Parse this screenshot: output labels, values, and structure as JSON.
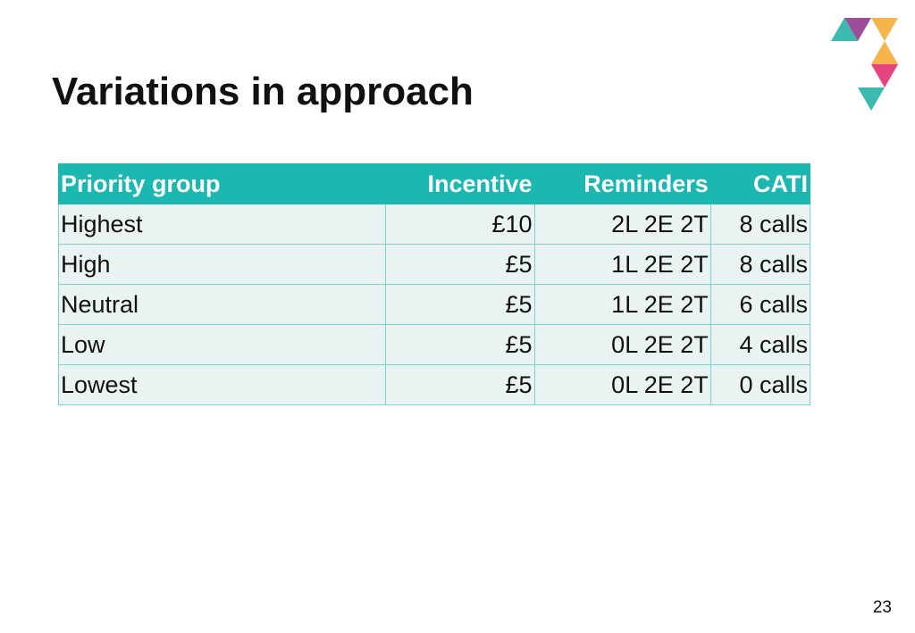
{
  "title": "Variations in approach",
  "table": {
    "header": [
      "Priority group",
      "Incentive",
      "Reminders",
      "CATI"
    ],
    "rows": [
      [
        "Highest",
        "£10",
        "2L 2E 2T",
        "8 calls"
      ],
      [
        "High",
        "£5",
        "1L 2E 2T",
        "8 calls"
      ],
      [
        "Neutral",
        "£5",
        "1L 2E 2T",
        "6 calls"
      ],
      [
        "Low",
        "£5",
        "0L 2E 2T",
        "4 calls"
      ],
      [
        "Lowest",
        "£5",
        "0L 2E 2T",
        "0 calls"
      ]
    ]
  },
  "page_number": "23"
}
